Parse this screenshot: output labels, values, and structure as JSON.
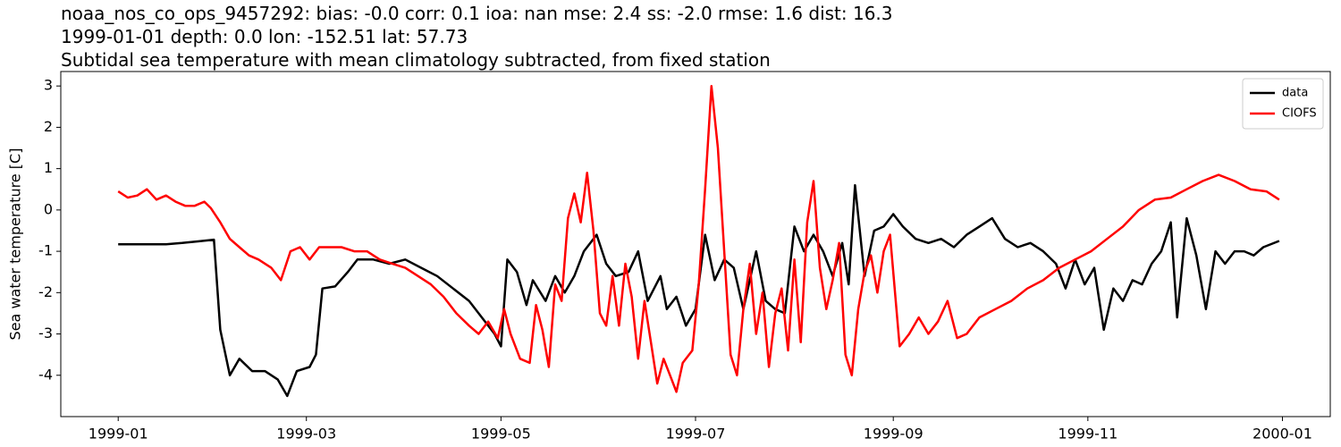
{
  "chart_data": {
    "type": "line",
    "title_lines": [
      "noaa_nos_co_ops_9457292: bias: -0.0  corr: 0.1  ioa: nan  mse: 2.4  ss: -2.0  rmse: 1.6  dist: 16.3",
      "1999-01-01 depth: 0.0 lon: -152.51 lat: 57.73",
      "Subtidal sea temperature with mean climatology subtracted, from fixed station"
    ],
    "ylabel": "Sea water temperature [C]",
    "xlim": [
      -18,
      380
    ],
    "ylim": [
      -5.0,
      3.35
    ],
    "xticks": [
      {
        "value": 0,
        "label": "1999-01"
      },
      {
        "value": 59,
        "label": "1999-03"
      },
      {
        "value": 120,
        "label": "1999-05"
      },
      {
        "value": 181,
        "label": "1999-07"
      },
      {
        "value": 243,
        "label": "1999-09"
      },
      {
        "value": 304,
        "label": "1999-11"
      },
      {
        "value": 365,
        "label": "2000-01"
      }
    ],
    "yticks": [
      -4,
      -3,
      -2,
      -1,
      0,
      1,
      2,
      3
    ],
    "legend": "upper right",
    "series": [
      {
        "name": "data",
        "color": "#000000",
        "x": [
          0,
          5,
          10,
          15,
          20,
          25,
          30,
          32,
          35,
          38,
          42,
          46,
          50,
          53,
          56,
          60,
          62,
          64,
          68,
          72,
          75,
          80,
          85,
          90,
          95,
          100,
          105,
          110,
          114,
          118,
          120,
          122,
          125,
          128,
          130,
          134,
          137,
          140,
          143,
          146,
          150,
          153,
          156,
          160,
          163,
          166,
          170,
          172,
          175,
          178,
          181,
          184,
          187,
          190,
          193,
          196,
          200,
          203,
          206,
          209,
          212,
          215,
          218,
          221,
          224,
          227,
          229,
          231,
          234,
          237,
          240,
          243,
          246,
          250,
          254,
          258,
          262,
          266,
          270,
          274,
          278,
          282,
          286,
          290,
          294,
          297,
          300,
          303,
          306,
          309,
          312,
          315,
          318,
          321,
          324,
          327,
          330,
          332,
          335,
          338,
          341,
          344,
          347,
          350,
          353,
          356,
          359,
          364
        ],
        "values": [
          -0.83,
          -0.83,
          -0.83,
          -0.83,
          -0.8,
          -0.76,
          -0.72,
          -2.9,
          -4.0,
          -3.6,
          -3.9,
          -3.9,
          -4.1,
          -4.5,
          -3.9,
          -3.8,
          -3.5,
          -1.9,
          -1.85,
          -1.5,
          -1.2,
          -1.2,
          -1.3,
          -1.2,
          -1.4,
          -1.6,
          -1.9,
          -2.2,
          -2.6,
          -3.0,
          -3.3,
          -1.2,
          -1.5,
          -2.3,
          -1.7,
          -2.2,
          -1.6,
          -2.0,
          -1.6,
          -1.0,
          -0.6,
          -1.3,
          -1.6,
          -1.5,
          -1.0,
          -2.2,
          -1.6,
          -2.4,
          -2.1,
          -2.8,
          -2.4,
          -0.6,
          -1.7,
          -1.2,
          -1.4,
          -2.4,
          -1.0,
          -2.2,
          -2.4,
          -2.5,
          -0.4,
          -1.0,
          -0.6,
          -1.0,
          -1.6,
          -0.8,
          -1.8,
          0.6,
          -1.6,
          -0.5,
          -0.4,
          -0.1,
          -0.4,
          -0.7,
          -0.8,
          -0.7,
          -0.9,
          -0.6,
          -0.4,
          -0.2,
          -0.7,
          -0.9,
          -0.8,
          -1.0,
          -1.3,
          -1.9,
          -1.2,
          -1.8,
          -1.4,
          -2.9,
          -1.9,
          -2.2,
          -1.7,
          -1.8,
          -1.3,
          -1.0,
          -0.3,
          -2.6,
          -0.2,
          -1.1,
          -2.4,
          -1.0,
          -1.3,
          -1.0,
          -1.0,
          -1.1,
          -0.9,
          -0.75
        ]
      },
      {
        "name": "CIOFS",
        "color": "#ff0000",
        "x": [
          0,
          3,
          6,
          9,
          12,
          15,
          18,
          21,
          24,
          27,
          29,
          32,
          35,
          38,
          41,
          44,
          48,
          51,
          54,
          57,
          60,
          63,
          66,
          70,
          74,
          78,
          82,
          86,
          90,
          94,
          98,
          102,
          106,
          110,
          113,
          116,
          119,
          121,
          123,
          126,
          129,
          131,
          133,
          135,
          137,
          139,
          141,
          143,
          145,
          147,
          149,
          151,
          153,
          155,
          157,
          159,
          161,
          163,
          165,
          167,
          169,
          171,
          173,
          175,
          177,
          180,
          182,
          184,
          186,
          188,
          190,
          192,
          194,
          196,
          198,
          200,
          202,
          204,
          206,
          208,
          210,
          212,
          214,
          216,
          218,
          220,
          222,
          224,
          226,
          228,
          230,
          232,
          234,
          236,
          238,
          240,
          242,
          245,
          248,
          251,
          254,
          257,
          260,
          263,
          266,
          270,
          275,
          280,
          285,
          290,
          295,
          300,
          305,
          310,
          315,
          320,
          325,
          330,
          335,
          340,
          345,
          350,
          355,
          360,
          364
        ],
        "values": [
          0.45,
          0.3,
          0.35,
          0.5,
          0.25,
          0.35,
          0.2,
          0.1,
          0.1,
          0.2,
          0.05,
          -0.3,
          -0.7,
          -0.9,
          -1.1,
          -1.2,
          -1.4,
          -1.7,
          -1.0,
          -0.9,
          -1.2,
          -0.9,
          -0.9,
          -0.9,
          -1.0,
          -1.0,
          -1.2,
          -1.3,
          -1.4,
          -1.6,
          -1.8,
          -2.1,
          -2.5,
          -2.8,
          -3.0,
          -2.7,
          -3.1,
          -2.4,
          -3.0,
          -3.6,
          -3.7,
          -2.3,
          -2.9,
          -3.8,
          -1.8,
          -2.2,
          -0.2,
          0.4,
          -0.3,
          0.9,
          -0.5,
          -2.5,
          -2.8,
          -1.6,
          -2.8,
          -1.3,
          -2.1,
          -3.6,
          -2.2,
          -3.2,
          -4.2,
          -3.6,
          -4.0,
          -4.4,
          -3.7,
          -3.4,
          -1.8,
          0.5,
          3.0,
          1.5,
          -1.0,
          -3.5,
          -4.0,
          -2.4,
          -1.3,
          -3.0,
          -2.0,
          -3.8,
          -2.5,
          -1.9,
          -3.4,
          -1.2,
          -3.2,
          -0.3,
          0.7,
          -1.4,
          -2.4,
          -1.7,
          -0.8,
          -3.5,
          -4.0,
          -2.4,
          -1.5,
          -1.1,
          -2.0,
          -1.0,
          -0.6,
          -3.3,
          -3.0,
          -2.6,
          -3.0,
          -2.7,
          -2.2,
          -3.1,
          -3.0,
          -2.6,
          -2.4,
          -2.2,
          -1.9,
          -1.7,
          -1.4,
          -1.2,
          -1.0,
          -0.7,
          -0.4,
          0.0,
          0.25,
          0.3,
          0.5,
          0.7,
          0.85,
          0.7,
          0.5,
          0.45,
          0.25
        ]
      }
    ]
  }
}
